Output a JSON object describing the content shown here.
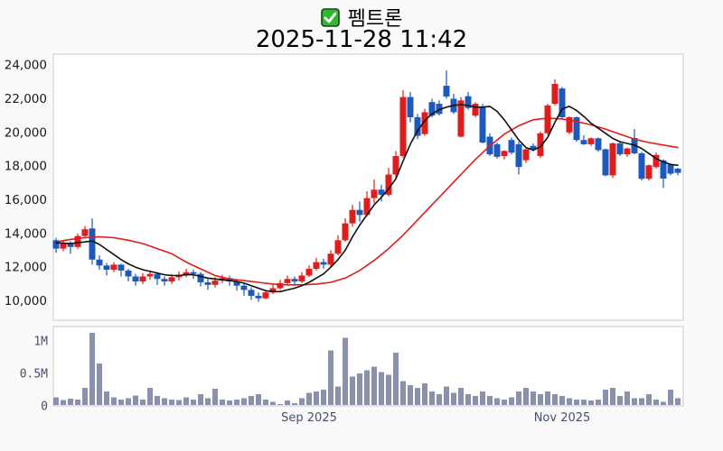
{
  "header": {
    "title": "펨트론",
    "datetime": "2025-11-28 11:42",
    "checkbox": {
      "checked": true,
      "color": "#2eb82e",
      "border": "#114a11",
      "check_color": "#ffffff"
    }
  },
  "chart_data": {
    "type": "candlestick",
    "title": "펨트론",
    "subtitle": "2025-11-28 11:42",
    "legend_position": "none",
    "grid": false,
    "price_axis": {
      "tick_labels": [
        "24,000",
        "22,000",
        "20,000",
        "18,000",
        "16,000",
        "14,000",
        "12,000",
        "10,000"
      ],
      "tick_values": [
        24000,
        22000,
        20000,
        18000,
        16000,
        14000,
        12000,
        10000
      ],
      "ylim": [
        8850,
        24650
      ]
    },
    "volume_axis": {
      "tick_labels": [
        "1M",
        "0.5M",
        "0"
      ],
      "tick_values": [
        1.0,
        0.5,
        0.0
      ],
      "unit": "millions",
      "ylim": [
        0,
        1.22
      ]
    },
    "x_axis": {
      "labels": [
        {
          "text": "Sep 2025",
          "index": 35
        },
        {
          "text": "Nov 2025",
          "index": 70
        }
      ]
    },
    "candles_ohlc": [
      [
        13600,
        13750,
        12850,
        13100
      ],
      [
        13100,
        13600,
        12950,
        13450
      ],
      [
        13450,
        13550,
        12800,
        13200
      ],
      [
        13200,
        14000,
        13100,
        13850
      ],
      [
        13850,
        14450,
        13700,
        14250
      ],
      [
        14300,
        14900,
        12150,
        12450
      ],
      [
        12450,
        12700,
        11850,
        12100
      ],
      [
        12100,
        12250,
        11500,
        11850
      ],
      [
        11850,
        12300,
        11700,
        12150
      ],
      [
        12150,
        12200,
        11450,
        11800
      ],
      [
        11800,
        11900,
        11150,
        11450
      ],
      [
        11450,
        11600,
        10900,
        11150
      ],
      [
        11150,
        11650,
        11000,
        11450
      ],
      [
        11450,
        11800,
        11250,
        11600
      ],
      [
        11600,
        11700,
        10950,
        11300
      ],
      [
        11300,
        11450,
        10900,
        11150
      ],
      [
        11150,
        11600,
        11000,
        11400
      ],
      [
        11400,
        11750,
        11200,
        11550
      ],
      [
        11550,
        11900,
        11400,
        11700
      ],
      [
        11700,
        11850,
        11300,
        11600
      ],
      [
        11600,
        11700,
        10850,
        11100
      ],
      [
        11100,
        11300,
        10650,
        10950
      ],
      [
        10950,
        11400,
        10800,
        11200
      ],
      [
        11200,
        11550,
        11050,
        11350
      ],
      [
        11350,
        11500,
        10900,
        11150
      ],
      [
        11150,
        11250,
        10600,
        10900
      ],
      [
        10900,
        11050,
        10300,
        10650
      ],
      [
        10650,
        10800,
        10050,
        10300
      ],
      [
        10300,
        10500,
        9950,
        10150
      ],
      [
        10150,
        10650,
        10100,
        10500
      ],
      [
        10500,
        10950,
        10400,
        10750
      ],
      [
        10750,
        11250,
        10650,
        11050
      ],
      [
        11050,
        11500,
        10950,
        11300
      ],
      [
        11300,
        11450,
        10900,
        11150
      ],
      [
        11150,
        11700,
        11050,
        11500
      ],
      [
        11500,
        12100,
        11400,
        11900
      ],
      [
        11900,
        12550,
        11800,
        12300
      ],
      [
        12300,
        12500,
        11900,
        12150
      ],
      [
        12150,
        13000,
        12050,
        12800
      ],
      [
        12800,
        13900,
        12700,
        13600
      ],
      [
        13600,
        14900,
        13500,
        14600
      ],
      [
        14600,
        15700,
        14400,
        15400
      ],
      [
        15400,
        15900,
        14700,
        15100
      ],
      [
        15100,
        16500,
        15000,
        16100
      ],
      [
        16100,
        17200,
        15800,
        16600
      ],
      [
        16600,
        16900,
        15900,
        16300
      ],
      [
        16300,
        17900,
        16200,
        17500
      ],
      [
        17500,
        18900,
        17300,
        18600
      ],
      [
        18600,
        22500,
        18500,
        22100
      ],
      [
        22100,
        22400,
        20600,
        20900
      ],
      [
        20900,
        21100,
        19600,
        19800
      ],
      [
        19900,
        21400,
        19800,
        21200
      ],
      [
        21800,
        22000,
        20900,
        21000
      ],
      [
        21700,
        21900,
        21000,
        21100
      ],
      [
        22770,
        23680,
        22000,
        22130
      ],
      [
        22000,
        22300,
        21100,
        21200
      ],
      [
        19750,
        22100,
        19700,
        21900
      ],
      [
        22150,
        22400,
        21350,
        21450
      ],
      [
        21000,
        21800,
        20900,
        21700
      ],
      [
        21550,
        21700,
        19350,
        19400
      ],
      [
        19750,
        19950,
        18600,
        18700
      ],
      [
        19300,
        19400,
        18450,
        18550
      ],
      [
        18600,
        18950,
        18400,
        18900
      ],
      [
        19550,
        19700,
        18700,
        18800
      ],
      [
        19300,
        19450,
        17500,
        17950
      ],
      [
        18350,
        19050,
        18200,
        19000
      ],
      [
        19200,
        19350,
        18850,
        18950
      ],
      [
        18600,
        20050,
        18500,
        19950
      ],
      [
        19950,
        21700,
        19850,
        21600
      ],
      [
        21700,
        23150,
        21600,
        22880
      ],
      [
        22610,
        22700,
        20850,
        20900
      ],
      [
        20000,
        20950,
        19900,
        20900
      ],
      [
        20900,
        20950,
        19450,
        19550
      ],
      [
        19550,
        19830,
        19250,
        19300
      ],
      [
        19300,
        19700,
        19200,
        19650
      ],
      [
        19650,
        19700,
        18850,
        18950
      ],
      [
        19000,
        19050,
        17400,
        17450
      ],
      [
        17450,
        19400,
        17300,
        19350
      ],
      [
        19350,
        19500,
        18600,
        18700
      ],
      [
        18700,
        19100,
        18550,
        19050
      ],
      [
        19670,
        20200,
        18700,
        18760
      ],
      [
        18760,
        18850,
        17150,
        17250
      ],
      [
        17250,
        18100,
        17150,
        18050
      ],
      [
        17950,
        18800,
        17850,
        18660
      ],
      [
        18340,
        18400,
        16700,
        17260
      ],
      [
        18100,
        18150,
        17450,
        17550
      ],
      [
        17850,
        17900,
        17450,
        17600
      ]
    ],
    "volumes_millions": [
      0.13,
      0.09,
      0.11,
      0.1,
      0.28,
      1.12,
      0.65,
      0.22,
      0.13,
      0.1,
      0.12,
      0.16,
      0.1,
      0.28,
      0.15,
      0.12,
      0.1,
      0.09,
      0.13,
      0.1,
      0.18,
      0.12,
      0.26,
      0.1,
      0.08,
      0.1,
      0.12,
      0.15,
      0.18,
      0.1,
      0.06,
      0.03,
      0.08,
      0.04,
      0.12,
      0.2,
      0.22,
      0.25,
      0.85,
      0.3,
      1.05,
      0.45,
      0.5,
      0.55,
      0.6,
      0.52,
      0.48,
      0.82,
      0.38,
      0.32,
      0.28,
      0.35,
      0.22,
      0.18,
      0.3,
      0.2,
      0.28,
      0.18,
      0.15,
      0.22,
      0.15,
      0.12,
      0.1,
      0.13,
      0.22,
      0.28,
      0.22,
      0.18,
      0.22,
      0.18,
      0.15,
      0.12,
      0.1,
      0.1,
      0.08,
      0.1,
      0.25,
      0.28,
      0.15,
      0.22,
      0.12,
      0.12,
      0.18,
      0.1,
      0.06,
      0.25,
      0.12
    ],
    "ma_fast_points": [
      [
        0,
        13450
      ],
      [
        2,
        13400
      ],
      [
        4,
        13500
      ],
      [
        5,
        13550
      ],
      [
        6,
        13350
      ],
      [
        7,
        13050
      ],
      [
        8,
        12750
      ],
      [
        9,
        12450
      ],
      [
        10,
        12200
      ],
      [
        11,
        12000
      ],
      [
        12,
        11850
      ],
      [
        13,
        11750
      ],
      [
        14,
        11650
      ],
      [
        15,
        11550
      ],
      [
        16,
        11500
      ],
      [
        17,
        11500
      ],
      [
        18,
        11550
      ],
      [
        19,
        11550
      ],
      [
        20,
        11450
      ],
      [
        21,
        11350
      ],
      [
        22,
        11300
      ],
      [
        23,
        11250
      ],
      [
        24,
        11200
      ],
      [
        25,
        11150
      ],
      [
        26,
        11050
      ],
      [
        27,
        10900
      ],
      [
        28,
        10750
      ],
      [
        29,
        10600
      ],
      [
        30,
        10550
      ],
      [
        31,
        10550
      ],
      [
        32,
        10650
      ],
      [
        33,
        10750
      ],
      [
        34,
        10900
      ],
      [
        35,
        11100
      ],
      [
        36,
        11350
      ],
      [
        37,
        11600
      ],
      [
        38,
        12000
      ],
      [
        39,
        12450
      ],
      [
        40,
        13000
      ],
      [
        41,
        13800
      ],
      [
        42,
        14500
      ],
      [
        43,
        15100
      ],
      [
        44,
        15700
      ],
      [
        45,
        16150
      ],
      [
        46,
        16650
      ],
      [
        47,
        17250
      ],
      [
        48,
        18300
      ],
      [
        49,
        19300
      ],
      [
        50,
        20100
      ],
      [
        51,
        20700
      ],
      [
        52,
        21100
      ],
      [
        53,
        21350
      ],
      [
        54,
        21500
      ],
      [
        55,
        21600
      ],
      [
        56,
        21650
      ],
      [
        57,
        21600
      ],
      [
        58,
        21500
      ],
      [
        59,
        21500
      ],
      [
        60,
        21550
      ],
      [
        61,
        21250
      ],
      [
        62,
        20750
      ],
      [
        63,
        20150
      ],
      [
        64,
        19550
      ],
      [
        65,
        19100
      ],
      [
        66,
        18950
      ],
      [
        67,
        19150
      ],
      [
        68,
        19700
      ],
      [
        69,
        20600
      ],
      [
        70,
        21400
      ],
      [
        71,
        21550
      ],
      [
        72,
        21300
      ],
      [
        73,
        20950
      ],
      [
        74,
        20550
      ],
      [
        75,
        20250
      ],
      [
        76,
        19950
      ],
      [
        77,
        19650
      ],
      [
        78,
        19450
      ],
      [
        79,
        19350
      ],
      [
        80,
        19250
      ],
      [
        81,
        19050
      ],
      [
        82,
        18750
      ],
      [
        83,
        18450
      ],
      [
        84,
        18250
      ],
      [
        85,
        18100
      ],
      [
        86,
        18050
      ]
    ],
    "ma_slow_points": [
      [
        0,
        13500
      ],
      [
        2,
        13650
      ],
      [
        4,
        13750
      ],
      [
        6,
        13800
      ],
      [
        8,
        13750
      ],
      [
        10,
        13600
      ],
      [
        12,
        13400
      ],
      [
        14,
        13100
      ],
      [
        16,
        12800
      ],
      [
        18,
        12300
      ],
      [
        20,
        11900
      ],
      [
        22,
        11500
      ],
      [
        24,
        11300
      ],
      [
        26,
        11200
      ],
      [
        28,
        11100
      ],
      [
        30,
        11000
      ],
      [
        32,
        10950
      ],
      [
        34,
        10950
      ],
      [
        36,
        11000
      ],
      [
        38,
        11100
      ],
      [
        40,
        11350
      ],
      [
        42,
        11800
      ],
      [
        44,
        12400
      ],
      [
        46,
        13100
      ],
      [
        48,
        13900
      ],
      [
        50,
        14800
      ],
      [
        52,
        15700
      ],
      [
        54,
        16600
      ],
      [
        56,
        17500
      ],
      [
        58,
        18400
      ],
      [
        60,
        19200
      ],
      [
        62,
        19900
      ],
      [
        64,
        20400
      ],
      [
        66,
        20750
      ],
      [
        68,
        20850
      ],
      [
        70,
        20800
      ],
      [
        72,
        20650
      ],
      [
        74,
        20450
      ],
      [
        76,
        20200
      ],
      [
        78,
        19900
      ],
      [
        80,
        19600
      ],
      [
        82,
        19400
      ],
      [
        84,
        19250
      ],
      [
        86,
        19100
      ]
    ],
    "colors": {
      "up": "#e01d1d",
      "down": "#1d58bd",
      "volume_bar": "#8a91ae",
      "ma_fast": "#111111",
      "ma_slow": "#e01d1d",
      "price_label": "#1a1a1a",
      "slate_label": "#44506e",
      "plot_border": "#c9c9c9",
      "plot_bg": "#ffffff",
      "page_bg": "#fafafa"
    }
  }
}
